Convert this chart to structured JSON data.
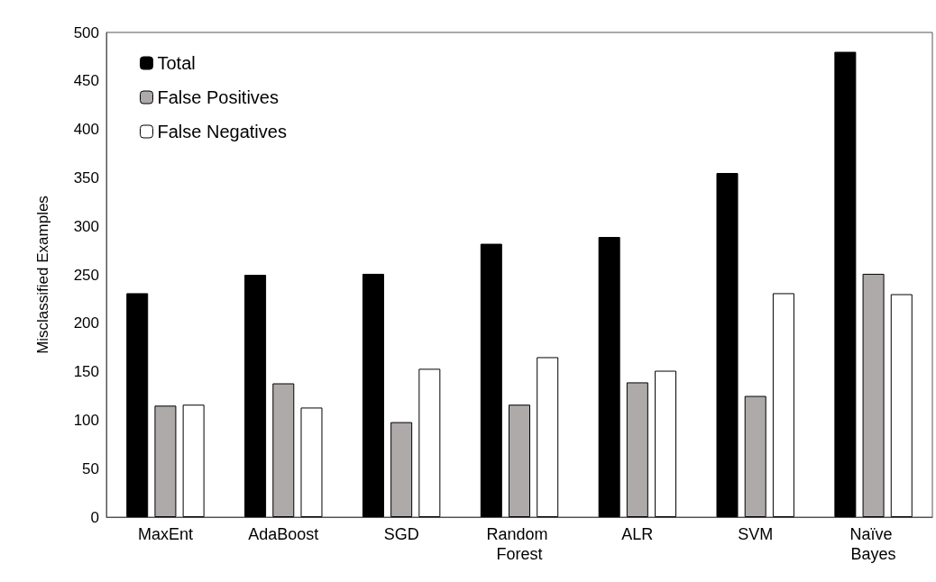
{
  "chart_data": {
    "type": "bar",
    "ylabel": "Misclassified Examples",
    "categories": [
      "MaxEnt",
      "AdaBoost",
      "SGD",
      "Random Forest",
      "ALR",
      "SVM",
      "Naïve Bayes"
    ],
    "series": [
      {
        "name": "Total",
        "color": "#000000",
        "values": [
          231,
          250,
          251,
          282,
          289,
          355,
          480
        ]
      },
      {
        "name": "False Positives",
        "color": "#aeaaaa",
        "values": [
          115,
          138,
          98,
          116,
          139,
          125,
          251
        ]
      },
      {
        "name": "False Negatives",
        "color": "#ffffff",
        "values": [
          116,
          113,
          153,
          165,
          151,
          231,
          230
        ]
      }
    ],
    "ylim": [
      0,
      500
    ],
    "yticks": [
      0,
      50,
      100,
      150,
      200,
      250,
      300,
      350,
      400,
      450,
      500
    ],
    "grid": false,
    "legend": "top left"
  }
}
